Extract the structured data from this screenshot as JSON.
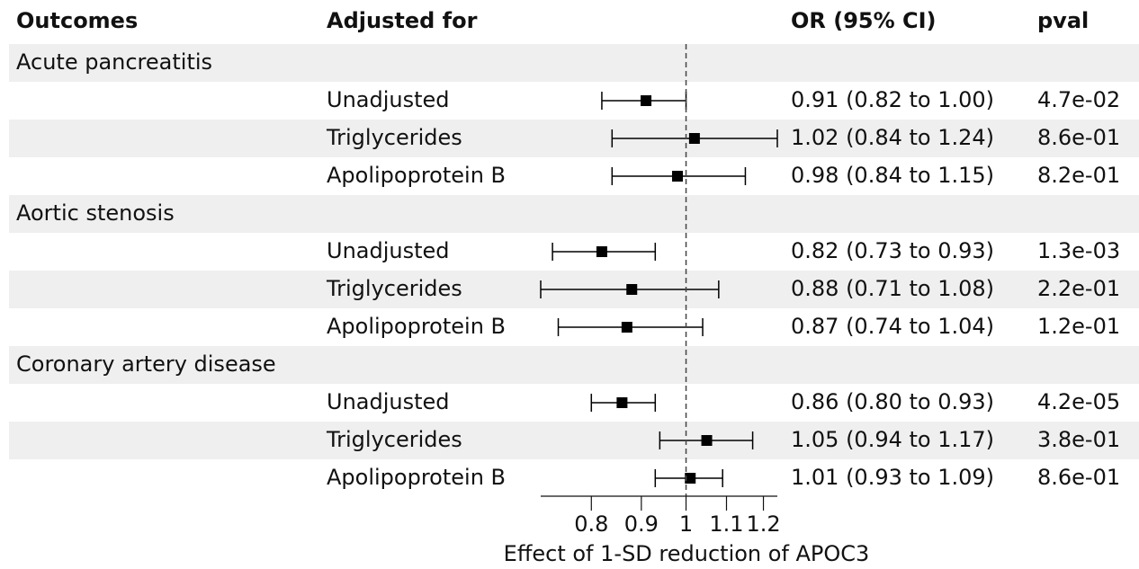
{
  "chart_data": {
    "type": "forest",
    "headers": [
      "Outcomes",
      "Adjusted for",
      "OR (95% CI)",
      "pval"
    ],
    "groups": [
      {
        "name": "Acute pancreatitis",
        "rows": [
          {
            "adjusted": "Unadjusted",
            "or": 0.91,
            "lower": 0.82,
            "upper": 1.0,
            "or_label": "0.91 (0.82 to 1.00)",
            "pval": "4.7e-02"
          },
          {
            "adjusted": "Triglycerides",
            "or": 1.02,
            "lower": 0.84,
            "upper": 1.24,
            "or_label": "1.02 (0.84 to 1.24)",
            "pval": "8.6e-01"
          },
          {
            "adjusted": "Apolipoprotein B",
            "or": 0.98,
            "lower": 0.84,
            "upper": 1.15,
            "or_label": "0.98 (0.84 to 1.15)",
            "pval": "8.2e-01"
          }
        ]
      },
      {
        "name": "Aortic stenosis",
        "rows": [
          {
            "adjusted": "Unadjusted",
            "or": 0.82,
            "lower": 0.73,
            "upper": 0.93,
            "or_label": "0.82 (0.73 to 0.93)",
            "pval": "1.3e-03"
          },
          {
            "adjusted": "Triglycerides",
            "or": 0.88,
            "lower": 0.71,
            "upper": 1.08,
            "or_label": "0.88 (0.71 to 1.08)",
            "pval": "2.2e-01"
          },
          {
            "adjusted": "Apolipoprotein B",
            "or": 0.87,
            "lower": 0.74,
            "upper": 1.04,
            "or_label": "0.87 (0.74 to 1.04)",
            "pval": "1.2e-01"
          }
        ]
      },
      {
        "name": "Coronary artery disease",
        "rows": [
          {
            "adjusted": "Unadjusted",
            "or": 0.86,
            "lower": 0.8,
            "upper": 0.93,
            "or_label": "0.86 (0.80 to 0.93)",
            "pval": "4.2e-05"
          },
          {
            "adjusted": "Triglycerides",
            "or": 1.05,
            "lower": 0.94,
            "upper": 1.17,
            "or_label": "1.05 (0.94 to 1.17)",
            "pval": "3.8e-01"
          },
          {
            "adjusted": "Apolipoprotein B",
            "or": 1.01,
            "lower": 0.93,
            "upper": 1.09,
            "or_label": "1.01 (0.93 to 1.09)",
            "pval": "8.6e-01"
          }
        ]
      }
    ],
    "x_label": "Effect of 1-SD reduction of APOC3",
    "xlim": [
      0.71,
      1.24
    ],
    "xticks": [
      0.8,
      0.9,
      1,
      1.1,
      1.2
    ],
    "log_x": true,
    "reference_line": 1,
    "color": "#000000",
    "band_color": "#efefef"
  }
}
